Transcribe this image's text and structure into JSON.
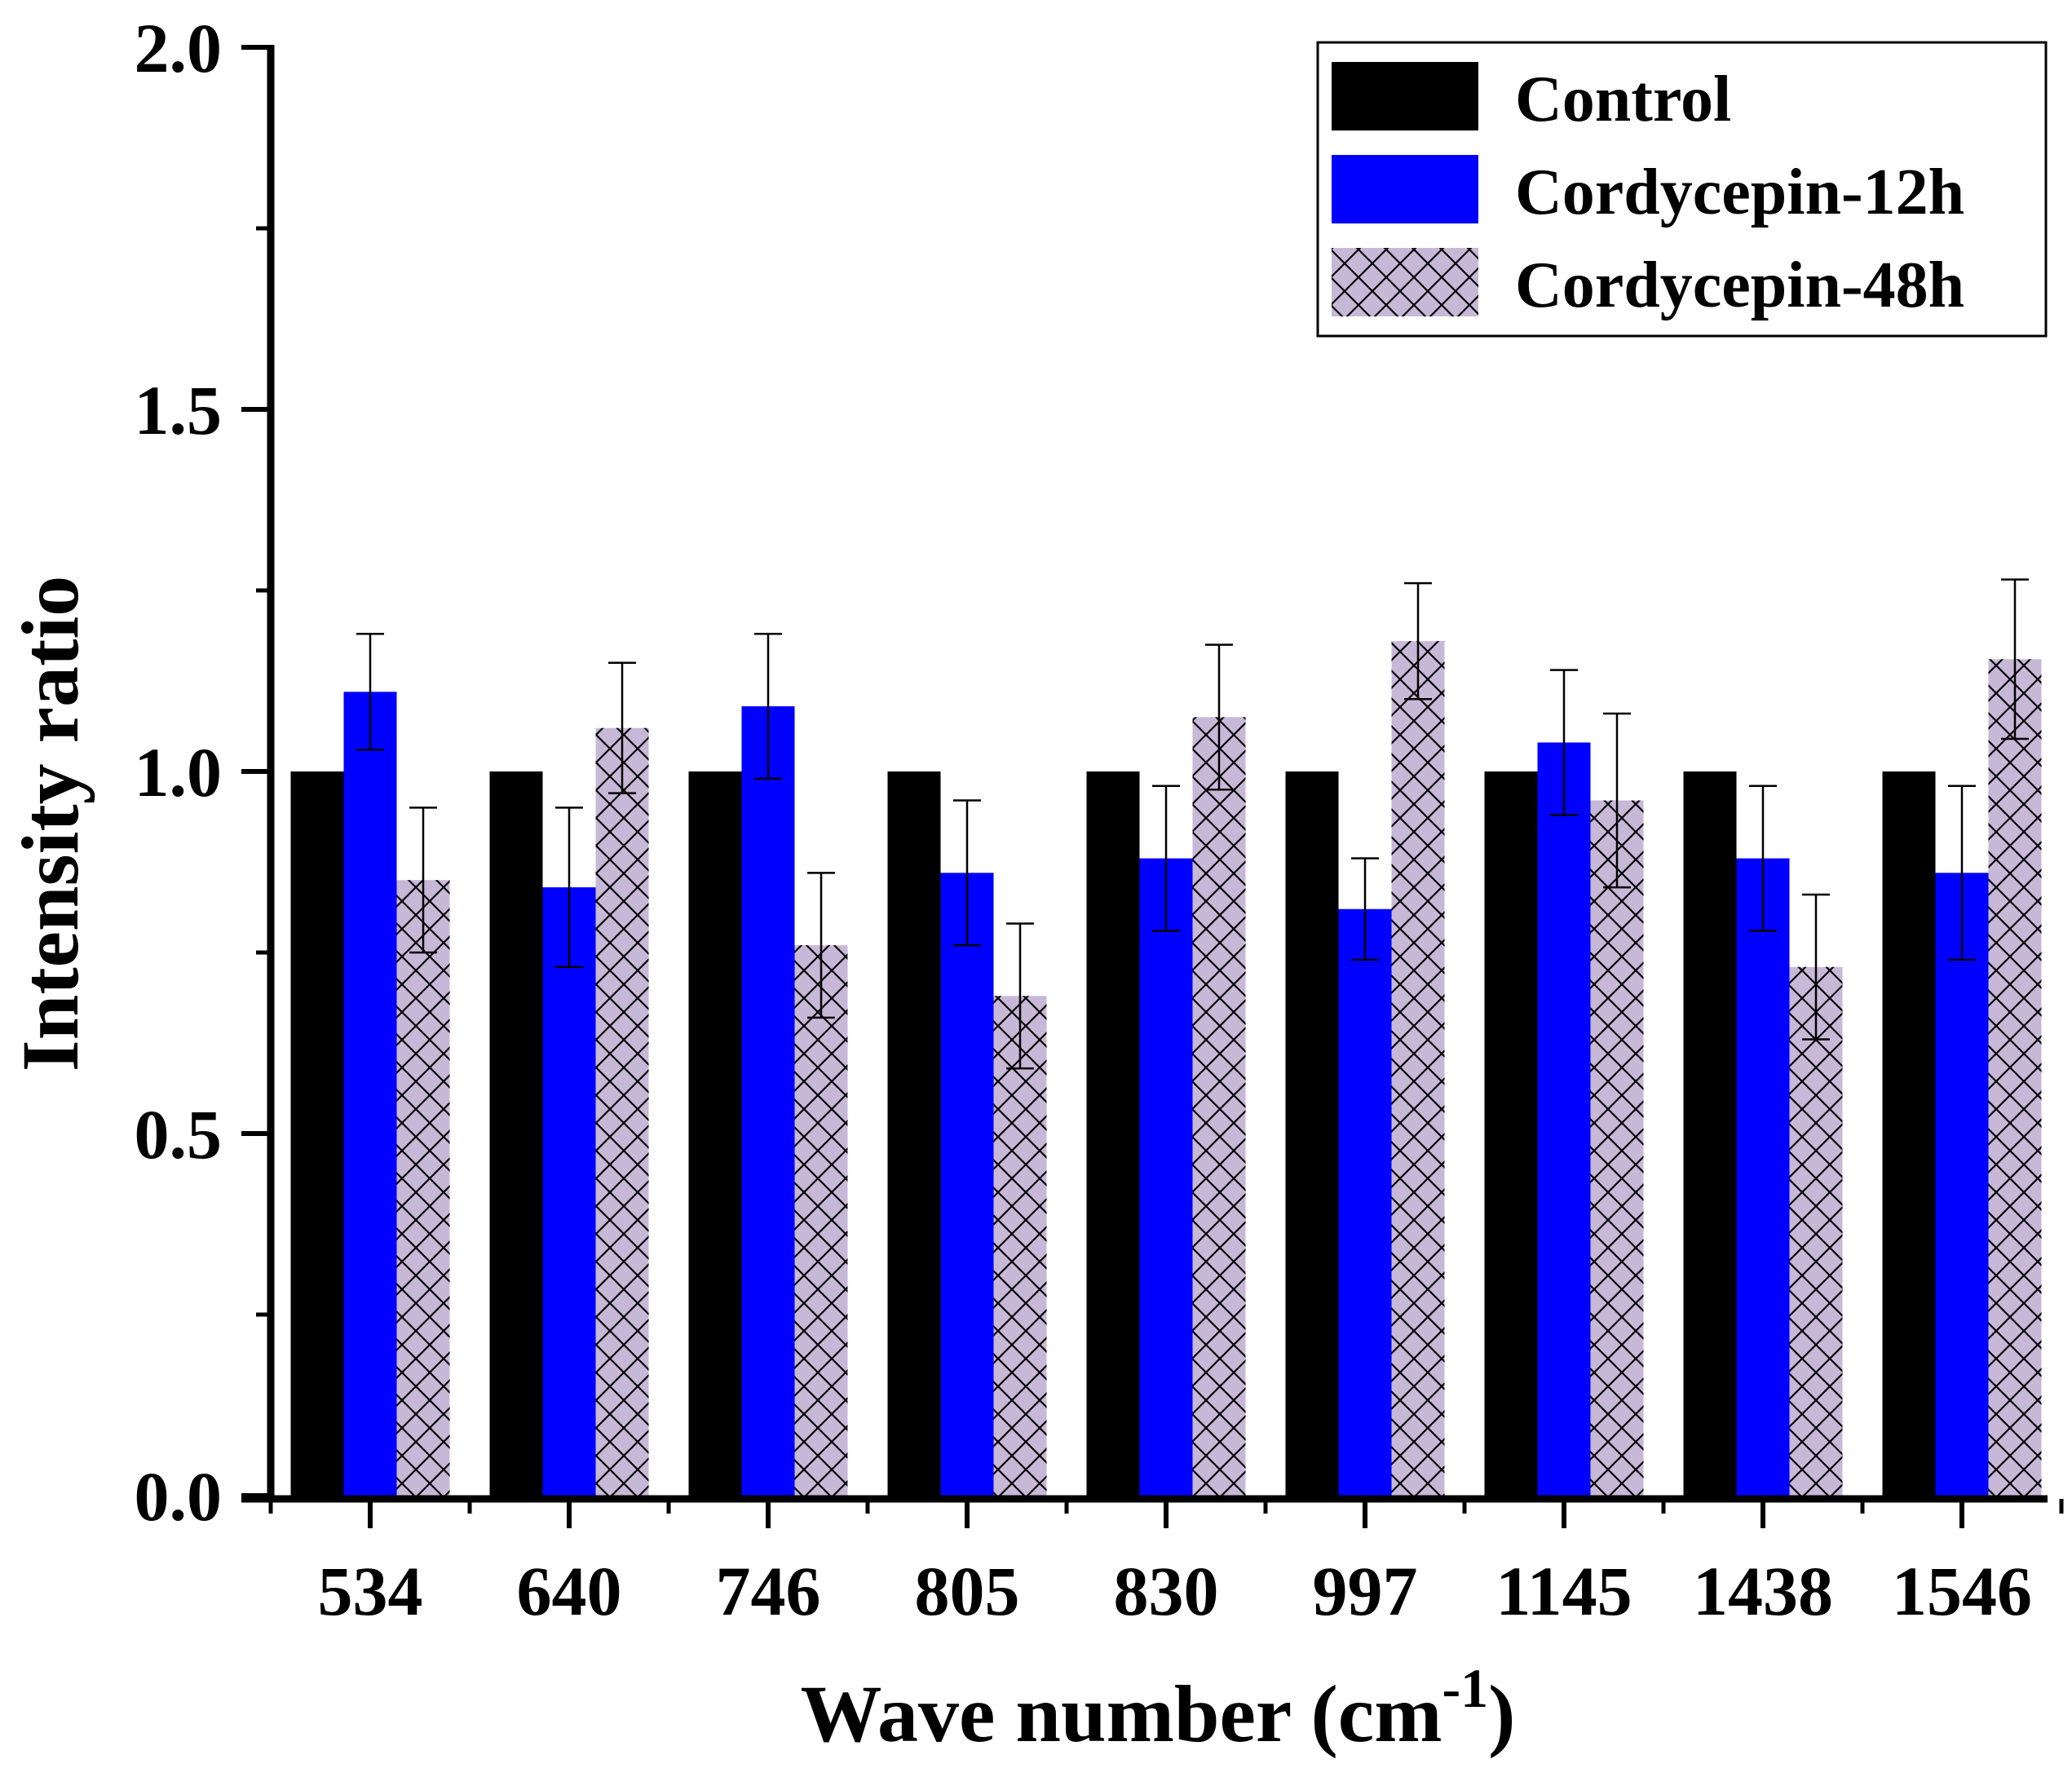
{
  "chart_data": {
    "type": "bar",
    "xlabel": "Wave number (cm",
    "xlabel_superscript": "-1",
    "xlabel_suffix": ")",
    "ylabel": "Intensity ratio",
    "ylim": [
      0,
      2.0
    ],
    "yticks": [
      0.0,
      0.5,
      1.0,
      1.5,
      2.0
    ],
    "ytick_labels": [
      "0.0",
      "0.5",
      "1.0",
      "1.5",
      "2.0"
    ],
    "categories": [
      "534",
      "640",
      "746",
      "805",
      "830",
      "997",
      "1145",
      "1438",
      "1546"
    ],
    "legend_position": "top-right",
    "series": [
      {
        "name": "Control",
        "color": "#000000",
        "pattern": "solid",
        "values": [
          1.0,
          1.0,
          1.0,
          1.0,
          1.0,
          1.0,
          1.0,
          1.0,
          1.0
        ],
        "errors": [
          0,
          0,
          0,
          0,
          0,
          0,
          0,
          0,
          0
        ]
      },
      {
        "name": "Cordycepin-12h",
        "color": "#0000ff",
        "pattern": "solid",
        "values": [
          1.11,
          0.84,
          1.09,
          0.86,
          0.88,
          0.81,
          1.04,
          0.88,
          0.86
        ],
        "errors": [
          0.08,
          0.11,
          0.1,
          0.1,
          0.1,
          0.07,
          0.1,
          0.1,
          0.12
        ]
      },
      {
        "name": "Cordycepin-48h",
        "color": "#c8b8d8",
        "pattern": "crosshatch",
        "values": [
          0.85,
          1.06,
          0.76,
          0.69,
          1.075,
          1.18,
          0.96,
          0.73,
          1.155
        ],
        "errors": [
          0.1,
          0.09,
          0.1,
          0.1,
          0.1,
          0.08,
          0.12,
          0.1,
          0.11
        ]
      }
    ]
  }
}
